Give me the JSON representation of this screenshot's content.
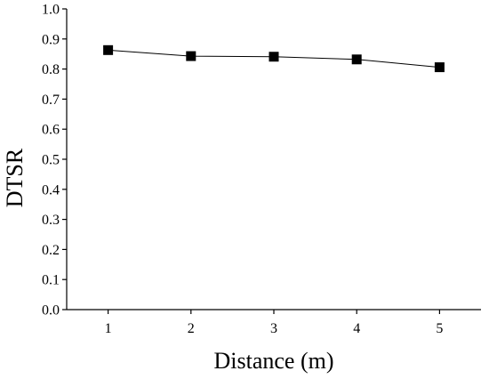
{
  "chart_data": {
    "type": "line",
    "title": "",
    "xlabel": "Distance (m)",
    "ylabel": "DTSR",
    "xlim": [
      0.5,
      5.5
    ],
    "ylim": [
      0.0,
      1.0
    ],
    "xticks": [
      1,
      2,
      3,
      4,
      5
    ],
    "yticks": [
      0.0,
      0.1,
      0.2,
      0.3,
      0.4,
      0.5,
      0.6,
      0.7,
      0.8,
      0.9,
      1.0
    ],
    "grid": false,
    "legend": "none",
    "marker": "square",
    "line_color": "#000000",
    "series": [
      {
        "x": [
          1,
          2,
          3,
          4,
          5
        ],
        "values": [
          0.863,
          0.843,
          0.841,
          0.832,
          0.806
        ]
      }
    ]
  }
}
